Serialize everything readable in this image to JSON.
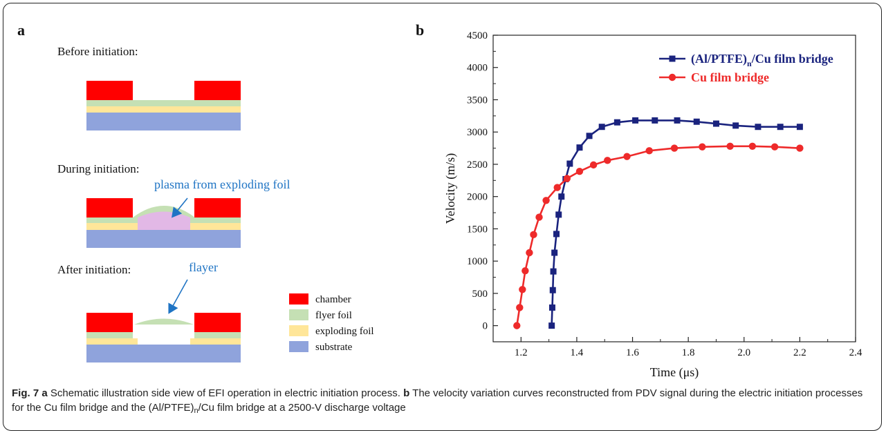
{
  "panel_a": {
    "letter": "a",
    "before_label": "Before initiation:",
    "during_label": "During initiation:",
    "after_label": "After initiation:",
    "plasma_annotation": "plasma from exploding foil",
    "flayer_annotation": "flayer",
    "legend": [
      {
        "label": "chamber",
        "color": "#ff0000"
      },
      {
        "label": "flyer foil",
        "color": "#c5e0b4"
      },
      {
        "label": "exploding foil",
        "color": "#ffe699"
      },
      {
        "label": "substrate",
        "color": "#8fa3dc"
      }
    ],
    "colors": {
      "plasma": "#e2b8e6",
      "annotation": "#1f74c4"
    }
  },
  "panel_b": {
    "letter": "b"
  },
  "chart_data": {
    "type": "line",
    "xlabel": "Time (μs)",
    "ylabel": "Velocity (m/s)",
    "xlim": [
      1.1,
      2.4
    ],
    "ylim": [
      -250,
      4500
    ],
    "xticks": [
      1.2,
      1.4,
      1.6,
      1.8,
      2.0,
      2.2,
      2.4
    ],
    "yticks": [
      0,
      500,
      1000,
      1500,
      2000,
      2500,
      3000,
      3500,
      4000,
      4500
    ],
    "x_tick_labels": [
      "1.2",
      "1.4",
      "1.6",
      "1.8",
      "2.0",
      "2.2",
      "2.4"
    ],
    "y_tick_labels": [
      "0",
      "500",
      "1000",
      "1500",
      "2000",
      "2500",
      "3000",
      "3500",
      "4000",
      "4500"
    ],
    "legend_position": "top-right",
    "grid": false,
    "series": [
      {
        "name_main": "(Al/PTFE)",
        "name_sub": "n",
        "name_rest": "/Cu film bridge",
        "color": "#1a237e",
        "marker": "square",
        "x": [
          1.31,
          1.312,
          1.314,
          1.316,
          1.32,
          1.327,
          1.335,
          1.345,
          1.36,
          1.375,
          1.41,
          1.445,
          1.49,
          1.545,
          1.61,
          1.68,
          1.76,
          1.83,
          1.9,
          1.97,
          2.05,
          2.13,
          2.2
        ],
        "y": [
          0,
          280,
          550,
          840,
          1130,
          1420,
          1720,
          2000,
          2270,
          2510,
          2760,
          2940,
          3080,
          3150,
          3180,
          3180,
          3180,
          3160,
          3130,
          3100,
          3080,
          3080,
          3080
        ]
      },
      {
        "name_main": "Cu film bridge",
        "name_sub": "",
        "name_rest": "",
        "color": "#ee2a2a",
        "marker": "circle",
        "x": [
          1.185,
          1.195,
          1.205,
          1.215,
          1.23,
          1.245,
          1.265,
          1.29,
          1.33,
          1.365,
          1.41,
          1.46,
          1.51,
          1.58,
          1.66,
          1.75,
          1.85,
          1.95,
          2.03,
          2.11,
          2.2
        ],
        "y": [
          0,
          280,
          560,
          850,
          1130,
          1410,
          1680,
          1940,
          2140,
          2280,
          2390,
          2490,
          2560,
          2620,
          2710,
          2750,
          2770,
          2780,
          2780,
          2770,
          2750
        ]
      }
    ]
  },
  "caption": {
    "fig_label": "Fig. 7",
    "a_label": "a",
    "a_text": " Schematic illustration side view of EFI operation in electric initiation process. ",
    "b_label": "b",
    "b_text_1": " The velocity variation curves reconstructed from PDV signal during the electric initiation processes for the Cu film bridge and the (Al/PTFE)",
    "b_sub": "n",
    "b_text_2": "/Cu film bridge at a 2500-V discharge voltage"
  }
}
